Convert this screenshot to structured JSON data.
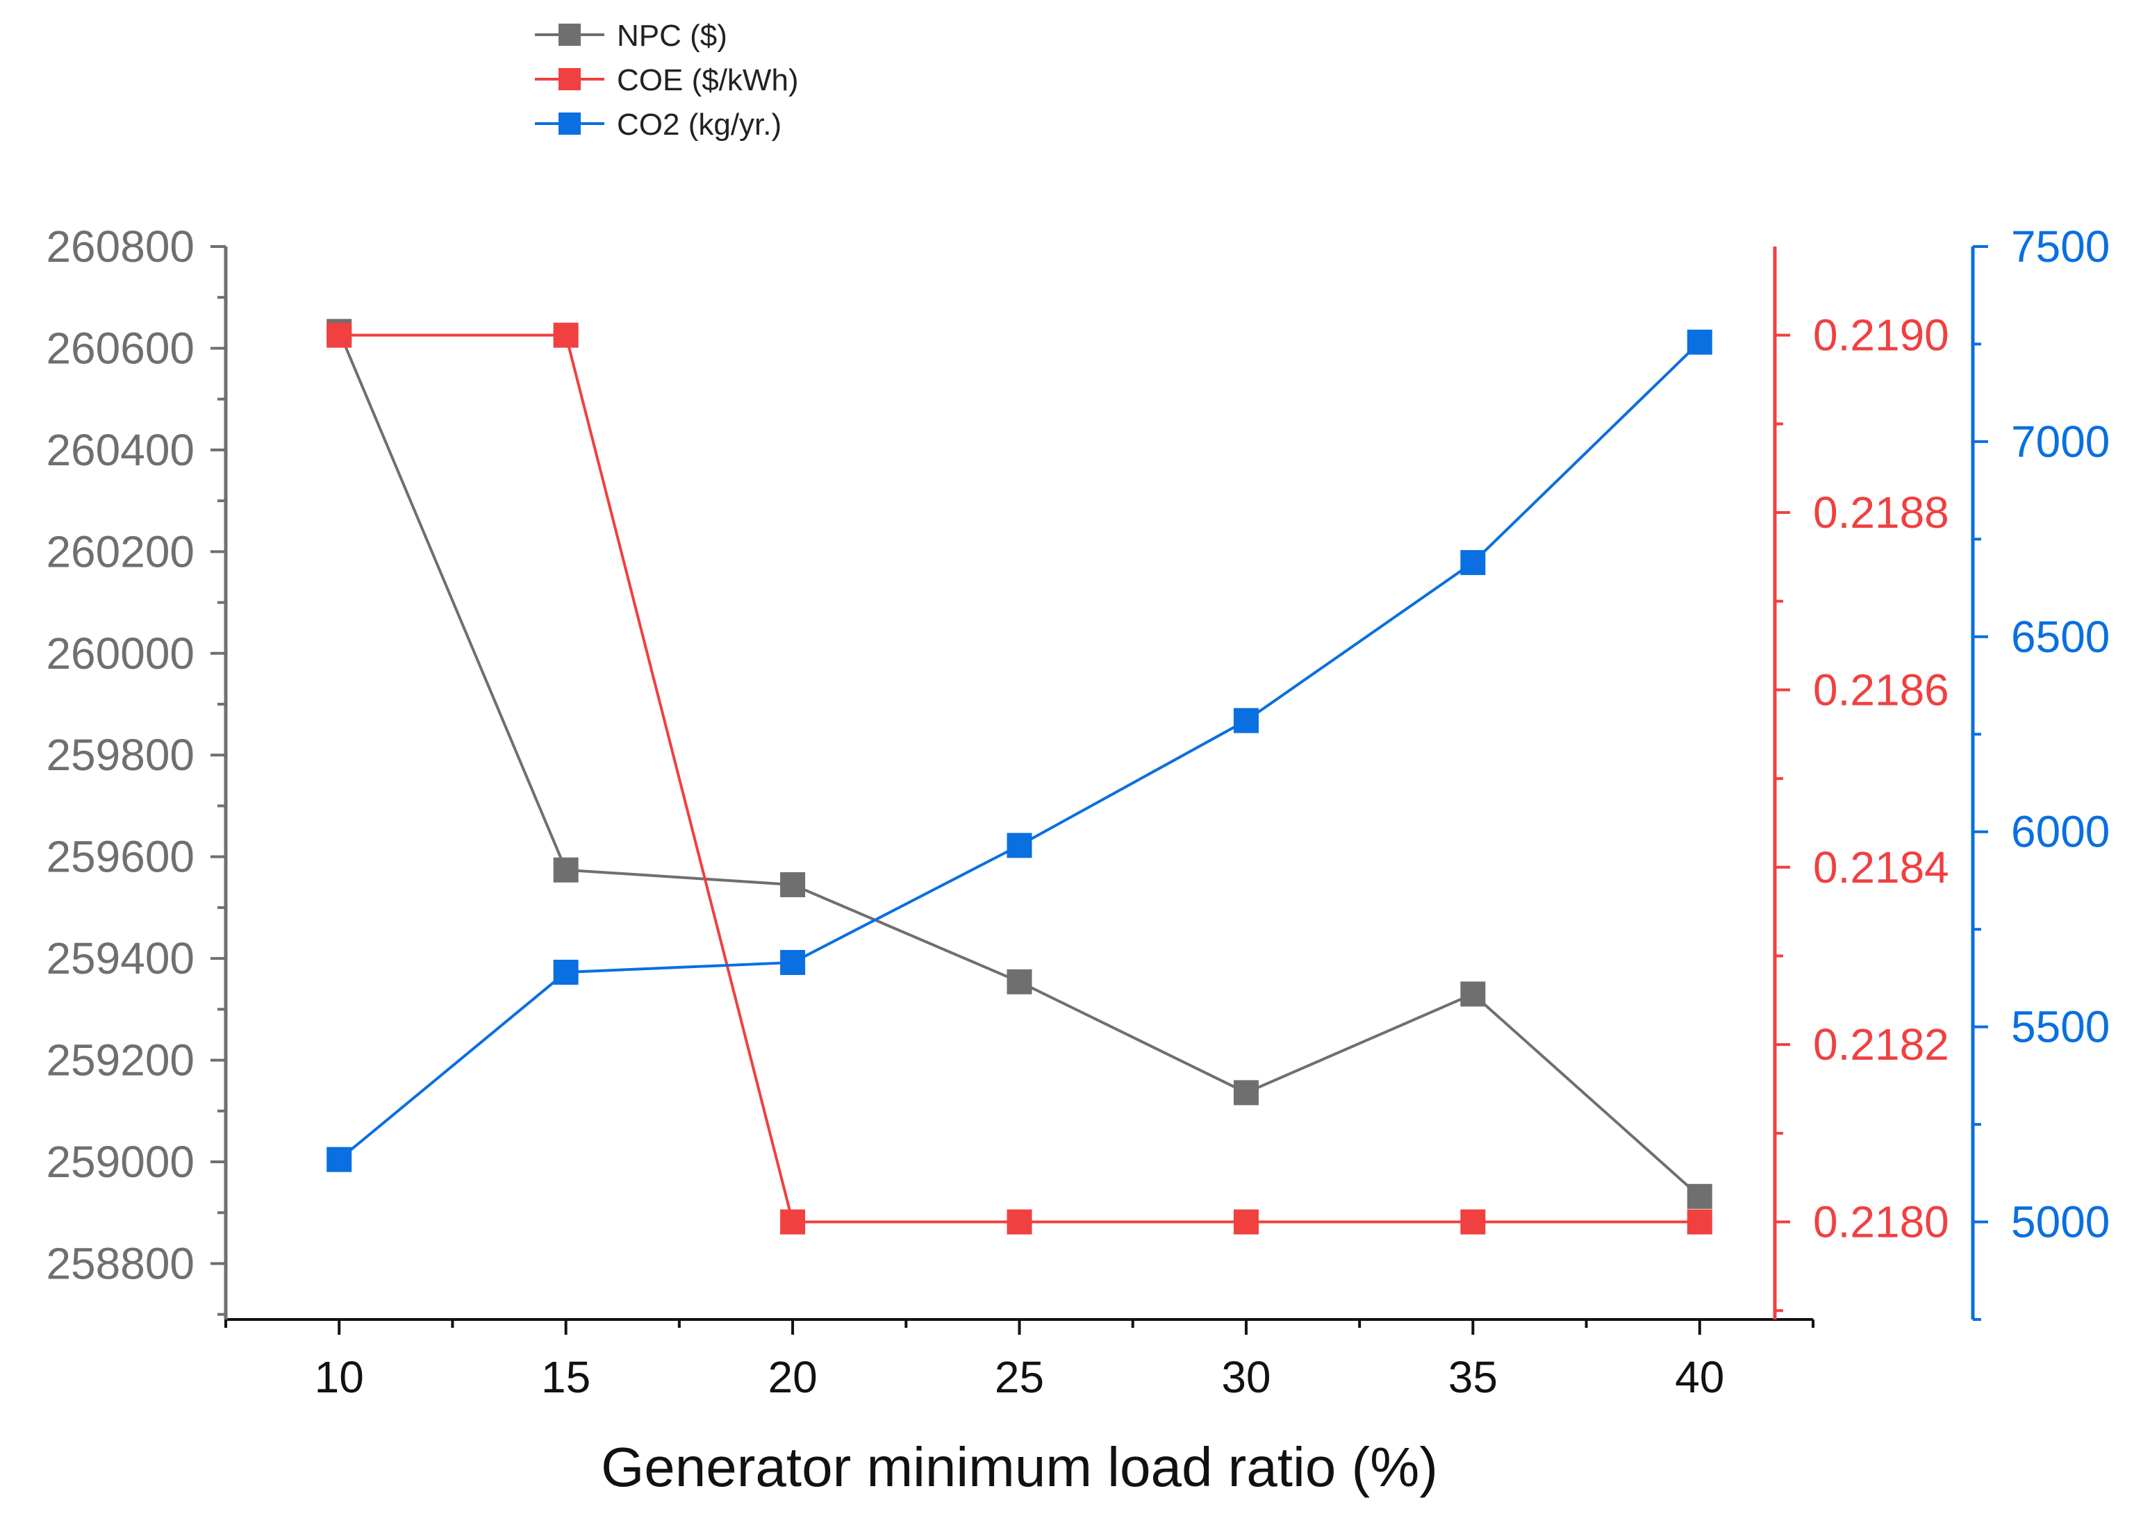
{
  "chart_data": {
    "type": "line",
    "title": "",
    "xlabel": "Generator minimum load ratio (%)",
    "x": [
      10,
      15,
      20,
      25,
      30,
      35,
      40
    ],
    "xlim": [
      7.5,
      42.5
    ],
    "xticks": [
      10,
      15,
      20,
      25,
      30,
      35,
      40
    ],
    "series": [
      {
        "name": "NPC ($)",
        "axis": "left",
        "color": "#6f6f6f",
        "marker": "square",
        "values": [
          260633,
          259574,
          259545,
          259354,
          259136,
          259330,
          258932
        ]
      },
      {
        "name": "COE ($/kWh)",
        "axis": "right1",
        "color": "#f04040",
        "marker": "square",
        "values": [
          0.219,
          0.219,
          0.218,
          0.218,
          0.218,
          0.218,
          0.218
        ]
      },
      {
        "name": "CO2 (kg/yr.)",
        "axis": "right2",
        "color": "#0a6fe0",
        "marker": "square",
        "values": [
          5160,
          5640,
          5665,
          5965,
          6285,
          6690,
          7255
        ]
      }
    ],
    "axes": {
      "left": {
        "ylim": [
          258690,
          260800
        ],
        "ticks": [
          258800,
          259000,
          259200,
          259400,
          259600,
          259800,
          260000,
          260200,
          260400,
          260600,
          260800
        ],
        "tick_labels": [
          "258800",
          "259000",
          "259200",
          "259400",
          "259600",
          "259800",
          "260000",
          "260200",
          "260400",
          "260600",
          "260800"
        ],
        "color": "#6f6f6f"
      },
      "right1": {
        "ylim": [
          0.21789,
          0.2191
        ],
        "ticks": [
          0.218,
          0.2182,
          0.2184,
          0.2186,
          0.2188,
          0.219
        ],
        "tick_labels": [
          "0.2180",
          "0.2182",
          "0.2184",
          "0.2186",
          "0.2188",
          "0.2190"
        ],
        "color": "#f04040"
      },
      "right2": {
        "ylim": [
          4750,
          7500
        ],
        "ticks": [
          5000,
          5500,
          6000,
          6500,
          7000,
          7500
        ],
        "tick_labels": [
          "5000",
          "5500",
          "6000",
          "6500",
          "7000",
          "7500"
        ],
        "color": "#0a6fe0"
      }
    },
    "legend": {
      "position": "top-center",
      "entries": [
        "NPC ($)",
        "COE ($/kWh)",
        "CO2 (kg/yr.)"
      ]
    },
    "grid": false
  }
}
